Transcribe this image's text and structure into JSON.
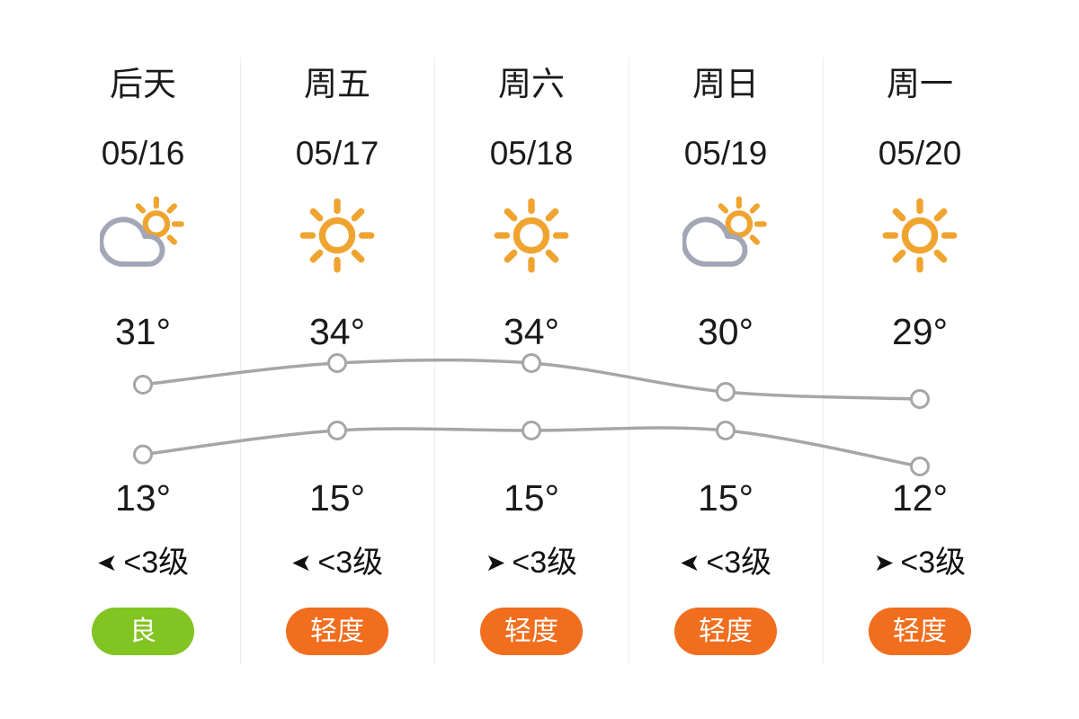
{
  "colors": {
    "text": "#1a1a1a",
    "divider": "#ededed",
    "trend_line": "#a6a6a6",
    "marker_fill": "#ffffff",
    "sun": "#f0a430",
    "cloud": "#a3a6b5",
    "aqi_good_bg": "#82c422",
    "aqi_mild_bg": "#f06e1e",
    "badge_text": "#ffffff",
    "wind_arrow": "#111111"
  },
  "columns": [
    {
      "day": "后天",
      "date": "05/16",
      "condition": "partly-cloudy",
      "high": "31°",
      "low": "13°",
      "wind": {
        "direction": "left",
        "label": "<3级"
      },
      "aqi": {
        "label": "良",
        "level": "good"
      }
    },
    {
      "day": "周五",
      "date": "05/17",
      "condition": "sunny",
      "high": "34°",
      "low": "15°",
      "wind": {
        "direction": "left",
        "label": "<3级"
      },
      "aqi": {
        "label": "轻度",
        "level": "mild"
      }
    },
    {
      "day": "周六",
      "date": "05/18",
      "condition": "sunny",
      "high": "34°",
      "low": "15°",
      "wind": {
        "direction": "right",
        "label": "<3级"
      },
      "aqi": {
        "label": "轻度",
        "level": "mild"
      }
    },
    {
      "day": "周日",
      "date": "05/19",
      "condition": "partly-cloudy",
      "high": "30°",
      "low": "15°",
      "wind": {
        "direction": "left",
        "label": "<3级"
      },
      "aqi": {
        "label": "轻度",
        "level": "mild"
      }
    },
    {
      "day": "周一",
      "date": "05/20",
      "condition": "sunny",
      "high": "29°",
      "low": "12°",
      "wind": {
        "direction": "right",
        "label": "<3级"
      },
      "aqi": {
        "label": "轻度",
        "level": "mild"
      }
    }
  ],
  "chart_data": {
    "type": "line",
    "categories": [
      "05/16",
      "05/17",
      "05/18",
      "05/19",
      "05/20"
    ],
    "series": [
      {
        "name": "high",
        "values": [
          31,
          34,
          34,
          30,
          29
        ]
      },
      {
        "name": "low",
        "values": [
          13,
          15,
          15,
          15,
          12
        ]
      }
    ],
    "unit": "°C",
    "grid": "vertical-dividers-only",
    "legend": "none"
  }
}
